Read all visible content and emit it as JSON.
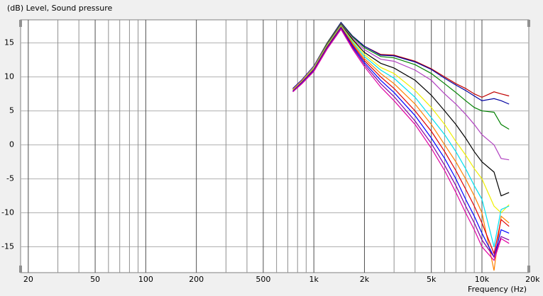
{
  "chart_data": {
    "type": "line",
    "title": "(dB)  Level, Sound pressure",
    "x_label": "Frequency  (Hz)",
    "x_scale": "log",
    "grid": true,
    "xlim": [
      18,
      19000
    ],
    "ylim": [
      -18.8,
      18.4
    ],
    "xticks": [
      20,
      50,
      100,
      200,
      500,
      {
        "value": 1000,
        "label": "1k"
      },
      {
        "value": 2000,
        "label": "2k"
      },
      {
        "value": 5000,
        "label": "5k"
      },
      {
        "value": 10000,
        "label": "10k"
      },
      {
        "value": 20000,
        "label": "20k"
      }
    ],
    "x_minor_ticks": [
      30,
      40,
      60,
      70,
      80,
      90,
      300,
      400,
      600,
      700,
      800,
      900,
      3000,
      4000,
      6000,
      7000,
      8000,
      9000
    ],
    "yticks": [
      15,
      10,
      5,
      0,
      -5,
      -10,
      -15
    ],
    "x": [
      750,
      850,
      1000,
      1200,
      1450,
      1700,
      2000,
      2500,
      3000,
      4000,
      5000,
      6000,
      7000,
      8000,
      9000,
      10000,
      11800,
      13000,
      14500
    ],
    "series": [
      {
        "color": "#c00000",
        "values": [
          8.3,
          9.6,
          11.6,
          15,
          18,
          16,
          14.5,
          13.3,
          13.2,
          12.3,
          11.2,
          10,
          9,
          8.3,
          7.5,
          7,
          7.8,
          7.5,
          7.2
        ]
      },
      {
        "color": "#0000a0",
        "values": [
          8.3,
          9.6,
          11.6,
          15,
          18,
          16,
          14.5,
          13.2,
          13.1,
          12.2,
          11.1,
          9.8,
          8.8,
          8,
          7.2,
          6.5,
          6.8,
          6.5,
          6
        ]
      },
      {
        "color": "#008000",
        "values": [
          8.2,
          9.5,
          11.5,
          15,
          17.9,
          15.9,
          14.3,
          13,
          12.8,
          11.8,
          10.5,
          9,
          7.7,
          6.5,
          5.5,
          5,
          4.8,
          3,
          2.3
        ]
      },
      {
        "color": "#b040c0",
        "values": [
          8.2,
          9.5,
          11.5,
          14.9,
          17.8,
          15.7,
          14,
          12.6,
          12.3,
          11,
          9.5,
          7.5,
          6,
          4.5,
          3,
          1.5,
          0,
          -2,
          -2.2
        ]
      },
      {
        "color": "#000000",
        "values": [
          8.1,
          9.4,
          11.4,
          14.8,
          17.7,
          15.5,
          13.6,
          12,
          11.3,
          9.5,
          7.3,
          5,
          3,
          1,
          -1,
          -2.5,
          -4,
          -7.5,
          -7
        ]
      },
      {
        "color": "#f0f000",
        "values": [
          8.1,
          9.4,
          11.4,
          14.7,
          17.6,
          15.3,
          13.3,
          11.4,
          10.5,
          8,
          5.5,
          3,
          0.5,
          -1.5,
          -3.5,
          -5,
          -9,
          -10,
          -8.8
        ]
      },
      {
        "color": "#00e0f0",
        "values": [
          8,
          9.3,
          11.3,
          14.6,
          17.5,
          15.1,
          13,
          11,
          9.8,
          7,
          4,
          1.5,
          -1,
          -3.5,
          -6,
          -8,
          -15,
          -9.5,
          -9
        ]
      },
      {
        "color": "#ff8000",
        "values": [
          8,
          9.3,
          11.2,
          14.5,
          17.4,
          14.9,
          12.7,
          10.5,
          9,
          6,
          3,
          0,
          -2.5,
          -5,
          -7.5,
          -10,
          -18.5,
          -10.5,
          -11.5
        ]
      },
      {
        "color": "#e00000",
        "values": [
          7.9,
          9.2,
          11.1,
          14.4,
          17.3,
          14.7,
          12.4,
          10,
          8.3,
          5,
          2,
          -1,
          -3.8,
          -6.5,
          -9,
          -11.5,
          -16,
          -11,
          -12
        ]
      },
      {
        "color": "#0000ff",
        "values": [
          7.9,
          9.2,
          11,
          14.3,
          17.2,
          14.5,
          12.1,
          9.5,
          7.7,
          4.3,
          1,
          -2,
          -5,
          -8,
          -10.5,
          -13,
          -16.5,
          -12.5,
          -13
        ]
      },
      {
        "color": "#8000a0",
        "values": [
          7.8,
          9.1,
          10.9,
          14.2,
          17.1,
          14.3,
          11.8,
          9,
          7.1,
          3.5,
          0.2,
          -3,
          -6,
          -9,
          -11.5,
          -14,
          -16.5,
          -13.5,
          -14
        ]
      },
      {
        "color": "#e000a0",
        "values": [
          7.8,
          9,
          10.8,
          14.1,
          17,
          14.1,
          11.5,
          8.5,
          6.5,
          3,
          -0.5,
          -3.8,
          -7,
          -10,
          -12.5,
          -15,
          -17,
          -13.8,
          -14.5
        ]
      }
    ]
  }
}
